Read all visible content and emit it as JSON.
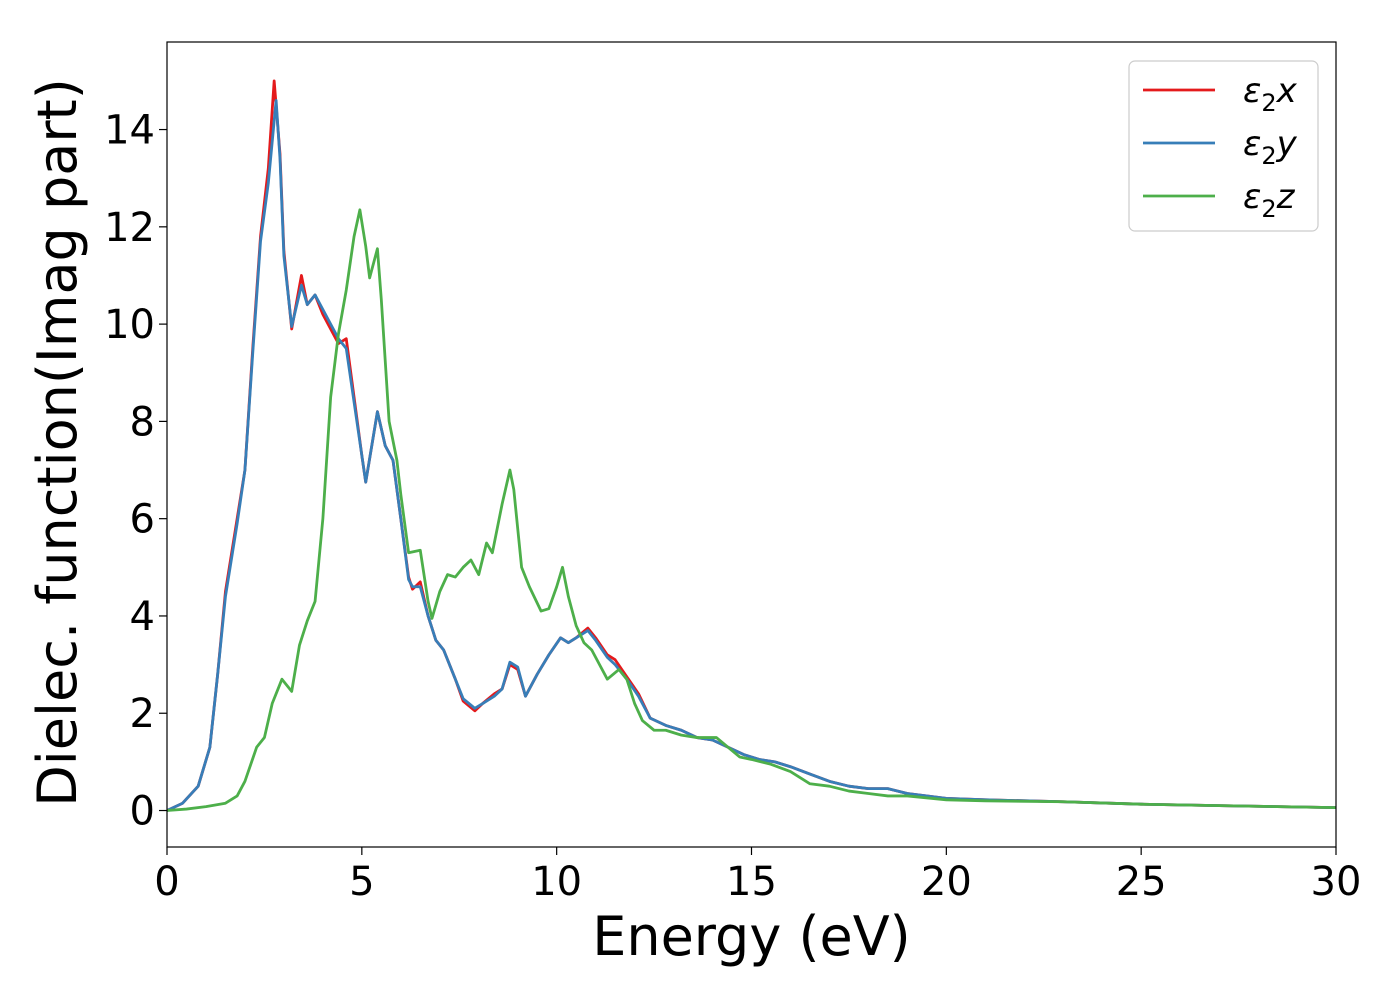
{
  "chart_data": {
    "type": "line",
    "title": "",
    "xlabel": "Energy (eV)",
    "ylabel": "Dielec. function(Imag part)",
    "xlim": [
      0,
      30
    ],
    "ylim": [
      -0.75,
      15.8
    ],
    "x_ticks": [
      0,
      5,
      10,
      15,
      20,
      25,
      30
    ],
    "y_ticks": [
      0,
      2,
      4,
      6,
      8,
      10,
      12,
      14
    ],
    "grid": false,
    "legend_position": "top-right",
    "series": [
      {
        "name": "ε₂x",
        "label_base": "ε",
        "label_sub": "2",
        "label_var": "x",
        "color": "#e41a1c",
        "points": [
          [
            0,
            0
          ],
          [
            0.4,
            0.15
          ],
          [
            0.8,
            0.5
          ],
          [
            1.1,
            1.3
          ],
          [
            1.3,
            2.8
          ],
          [
            1.5,
            4.5
          ],
          [
            1.8,
            6.0
          ],
          [
            2.0,
            7.0
          ],
          [
            2.2,
            9.5
          ],
          [
            2.4,
            11.8
          ],
          [
            2.6,
            13.2
          ],
          [
            2.75,
            15.0
          ],
          [
            2.9,
            13.5
          ],
          [
            3.0,
            11.5
          ],
          [
            3.2,
            9.9
          ],
          [
            3.45,
            11.0
          ],
          [
            3.6,
            10.4
          ],
          [
            3.8,
            10.6
          ],
          [
            4.0,
            10.2
          ],
          [
            4.2,
            9.9
          ],
          [
            4.4,
            9.6
          ],
          [
            4.6,
            9.7
          ],
          [
            4.8,
            8.5
          ],
          [
            5.0,
            7.3
          ],
          [
            5.1,
            6.75
          ],
          [
            5.4,
            8.2
          ],
          [
            5.6,
            7.5
          ],
          [
            5.8,
            7.2
          ],
          [
            6.0,
            6.0
          ],
          [
            6.2,
            4.8
          ],
          [
            6.3,
            4.55
          ],
          [
            6.5,
            4.7
          ],
          [
            6.7,
            4.0
          ],
          [
            6.9,
            3.5
          ],
          [
            7.1,
            3.3
          ],
          [
            7.4,
            2.7
          ],
          [
            7.6,
            2.25
          ],
          [
            7.9,
            2.05
          ],
          [
            8.1,
            2.2
          ],
          [
            8.4,
            2.4
          ],
          [
            8.6,
            2.5
          ],
          [
            8.8,
            3.0
          ],
          [
            9.0,
            2.9
          ],
          [
            9.2,
            2.35
          ],
          [
            9.5,
            2.8
          ],
          [
            9.8,
            3.2
          ],
          [
            10.1,
            3.55
          ],
          [
            10.3,
            3.45
          ],
          [
            10.5,
            3.55
          ],
          [
            10.8,
            3.75
          ],
          [
            11.0,
            3.55
          ],
          [
            11.3,
            3.2
          ],
          [
            11.5,
            3.1
          ],
          [
            11.8,
            2.75
          ],
          [
            12.1,
            2.4
          ],
          [
            12.4,
            1.9
          ],
          [
            12.8,
            1.75
          ],
          [
            13.2,
            1.65
          ],
          [
            13.6,
            1.5
          ],
          [
            14.0,
            1.45
          ],
          [
            14.4,
            1.3
          ],
          [
            14.8,
            1.15
          ],
          [
            15.2,
            1.05
          ],
          [
            15.6,
            1.0
          ],
          [
            16.0,
            0.9
          ],
          [
            16.5,
            0.75
          ],
          [
            17.0,
            0.6
          ],
          [
            17.5,
            0.5
          ],
          [
            18.0,
            0.45
          ],
          [
            18.5,
            0.45
          ],
          [
            19.0,
            0.35
          ],
          [
            20.0,
            0.25
          ],
          [
            21.0,
            0.22
          ],
          [
            23.0,
            0.18
          ],
          [
            25.0,
            0.13
          ],
          [
            27.0,
            0.1
          ],
          [
            30.0,
            0.06
          ]
        ]
      },
      {
        "name": "ε₂y",
        "label_base": "ε",
        "label_sub": "2",
        "label_var": "y",
        "color": "#377eb8",
        "points": [
          [
            0,
            0
          ],
          [
            0.4,
            0.15
          ],
          [
            0.8,
            0.5
          ],
          [
            1.1,
            1.3
          ],
          [
            1.3,
            2.8
          ],
          [
            1.5,
            4.4
          ],
          [
            1.8,
            5.9
          ],
          [
            2.0,
            7.0
          ],
          [
            2.2,
            9.4
          ],
          [
            2.4,
            11.7
          ],
          [
            2.6,
            12.9
          ],
          [
            2.8,
            14.6
          ],
          [
            2.9,
            13.4
          ],
          [
            3.0,
            11.4
          ],
          [
            3.2,
            9.95
          ],
          [
            3.45,
            10.8
          ],
          [
            3.6,
            10.4
          ],
          [
            3.8,
            10.6
          ],
          [
            4.0,
            10.3
          ],
          [
            4.2,
            10.0
          ],
          [
            4.4,
            9.7
          ],
          [
            4.6,
            9.5
          ],
          [
            4.8,
            8.4
          ],
          [
            5.0,
            7.3
          ],
          [
            5.1,
            6.75
          ],
          [
            5.4,
            8.2
          ],
          [
            5.6,
            7.5
          ],
          [
            5.8,
            7.2
          ],
          [
            6.0,
            6.0
          ],
          [
            6.2,
            4.75
          ],
          [
            6.3,
            4.6
          ],
          [
            6.5,
            4.6
          ],
          [
            6.7,
            4.0
          ],
          [
            6.9,
            3.5
          ],
          [
            7.1,
            3.3
          ],
          [
            7.4,
            2.7
          ],
          [
            7.6,
            2.3
          ],
          [
            7.9,
            2.1
          ],
          [
            8.1,
            2.2
          ],
          [
            8.4,
            2.35
          ],
          [
            8.6,
            2.5
          ],
          [
            8.8,
            3.05
          ],
          [
            9.0,
            2.95
          ],
          [
            9.2,
            2.35
          ],
          [
            9.5,
            2.8
          ],
          [
            9.8,
            3.2
          ],
          [
            10.1,
            3.55
          ],
          [
            10.3,
            3.45
          ],
          [
            10.5,
            3.55
          ],
          [
            10.8,
            3.7
          ],
          [
            11.0,
            3.5
          ],
          [
            11.3,
            3.15
          ],
          [
            11.5,
            3.0
          ],
          [
            11.8,
            2.7
          ],
          [
            12.1,
            2.35
          ],
          [
            12.4,
            1.9
          ],
          [
            12.8,
            1.75
          ],
          [
            13.2,
            1.65
          ],
          [
            13.6,
            1.5
          ],
          [
            14.0,
            1.45
          ],
          [
            14.4,
            1.3
          ],
          [
            14.8,
            1.15
          ],
          [
            15.2,
            1.05
          ],
          [
            15.6,
            1.0
          ],
          [
            16.0,
            0.9
          ],
          [
            16.5,
            0.75
          ],
          [
            17.0,
            0.6
          ],
          [
            17.5,
            0.5
          ],
          [
            18.0,
            0.45
          ],
          [
            18.5,
            0.45
          ],
          [
            19.0,
            0.35
          ],
          [
            20.0,
            0.25
          ],
          [
            21.0,
            0.22
          ],
          [
            23.0,
            0.18
          ],
          [
            25.0,
            0.13
          ],
          [
            27.0,
            0.1
          ],
          [
            30.0,
            0.06
          ]
        ]
      },
      {
        "name": "ε₂z",
        "label_base": "ε",
        "label_sub": "2",
        "label_var": "z",
        "color": "#4daf4a",
        "points": [
          [
            0,
            0
          ],
          [
            0.5,
            0.03
          ],
          [
            1.0,
            0.08
          ],
          [
            1.5,
            0.15
          ],
          [
            1.8,
            0.3
          ],
          [
            2.0,
            0.6
          ],
          [
            2.3,
            1.3
          ],
          [
            2.5,
            1.5
          ],
          [
            2.7,
            2.2
          ],
          [
            2.95,
            2.7
          ],
          [
            3.2,
            2.45
          ],
          [
            3.4,
            3.4
          ],
          [
            3.6,
            3.9
          ],
          [
            3.8,
            4.3
          ],
          [
            4.0,
            6.0
          ],
          [
            4.2,
            8.5
          ],
          [
            4.4,
            9.8
          ],
          [
            4.6,
            10.7
          ],
          [
            4.8,
            11.8
          ],
          [
            4.95,
            12.35
          ],
          [
            5.1,
            11.6
          ],
          [
            5.2,
            10.95
          ],
          [
            5.4,
            11.55
          ],
          [
            5.5,
            10.5
          ],
          [
            5.7,
            8.0
          ],
          [
            5.9,
            7.2
          ],
          [
            6.0,
            6.5
          ],
          [
            6.2,
            5.3
          ],
          [
            6.5,
            5.35
          ],
          [
            6.7,
            4.3
          ],
          [
            6.8,
            3.95
          ],
          [
            7.0,
            4.5
          ],
          [
            7.2,
            4.85
          ],
          [
            7.4,
            4.8
          ],
          [
            7.6,
            5.0
          ],
          [
            7.8,
            5.15
          ],
          [
            8.0,
            4.85
          ],
          [
            8.2,
            5.5
          ],
          [
            8.35,
            5.3
          ],
          [
            8.6,
            6.3
          ],
          [
            8.8,
            7.0
          ],
          [
            8.9,
            6.6
          ],
          [
            9.1,
            5.0
          ],
          [
            9.3,
            4.6
          ],
          [
            9.6,
            4.1
          ],
          [
            9.8,
            4.15
          ],
          [
            10.0,
            4.6
          ],
          [
            10.15,
            5.0
          ],
          [
            10.3,
            4.4
          ],
          [
            10.5,
            3.8
          ],
          [
            10.7,
            3.45
          ],
          [
            10.9,
            3.3
          ],
          [
            11.1,
            3.0
          ],
          [
            11.3,
            2.7
          ],
          [
            11.6,
            2.9
          ],
          [
            11.8,
            2.7
          ],
          [
            12.0,
            2.2
          ],
          [
            12.2,
            1.85
          ],
          [
            12.5,
            1.65
          ],
          [
            12.8,
            1.65
          ],
          [
            13.2,
            1.55
          ],
          [
            13.6,
            1.5
          ],
          [
            14.1,
            1.5
          ],
          [
            14.4,
            1.3
          ],
          [
            14.7,
            1.1
          ],
          [
            15.0,
            1.05
          ],
          [
            15.5,
            0.95
          ],
          [
            16.0,
            0.8
          ],
          [
            16.5,
            0.55
          ],
          [
            17.0,
            0.5
          ],
          [
            17.5,
            0.4
          ],
          [
            18.0,
            0.35
          ],
          [
            18.5,
            0.3
          ],
          [
            19.0,
            0.3
          ],
          [
            20.0,
            0.22
          ],
          [
            21.0,
            0.2
          ],
          [
            23.0,
            0.18
          ],
          [
            25.0,
            0.13
          ],
          [
            27.0,
            0.1
          ],
          [
            30.0,
            0.06
          ]
        ]
      }
    ]
  }
}
